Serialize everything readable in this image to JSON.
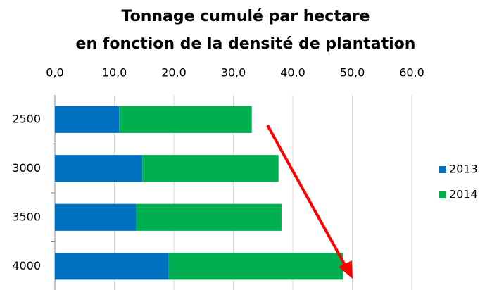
{
  "chart_data": {
    "type": "stacked_barh",
    "title": "Tonnage cumulé par hectare",
    "subtitle": "en fonction de la densité de plantation",
    "categories": [
      "2500",
      "3000",
      "3500",
      "4000"
    ],
    "series": [
      {
        "name": "2013",
        "color": "#0070c0",
        "values": [
          10.8,
          14.7,
          13.7,
          19.1
        ]
      },
      {
        "name": "2014",
        "color": "#00b050",
        "values": [
          22.3,
          22.9,
          24.4,
          29.3
        ]
      }
    ],
    "xlim": [
      0,
      60
    ],
    "xticks": [
      {
        "value": 0,
        "label": "0,0"
      },
      {
        "value": 10,
        "label": "10,0"
      },
      {
        "value": 20,
        "label": "20,0"
      },
      {
        "value": 30,
        "label": "30,0"
      },
      {
        "value": 40,
        "label": "40,0"
      },
      {
        "value": 50,
        "label": "50,0"
      },
      {
        "value": 60,
        "label": "60,0"
      }
    ],
    "grid": true,
    "legend": "right"
  }
}
